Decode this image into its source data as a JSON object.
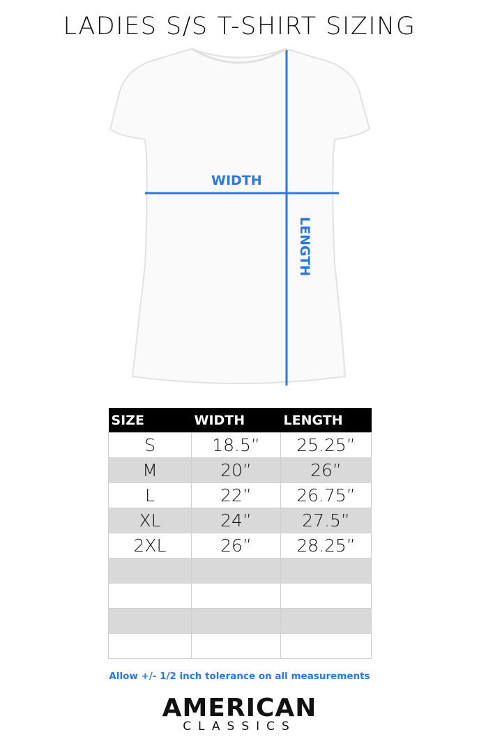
{
  "title": "LADIES S/S T-SHIRT SIZING",
  "diagram": {
    "width_label": "WIDTH",
    "length_label": "LENGTH",
    "accent_color": "#2a78e4"
  },
  "table": {
    "headers": [
      "SIZE",
      "WIDTH",
      "LENGTH"
    ],
    "rows": [
      [
        "S",
        "18.5”",
        "25.25”"
      ],
      [
        "M",
        "20”",
        "26”"
      ],
      [
        "L",
        "22”",
        "26.75”"
      ],
      [
        "XL",
        "24”",
        "27.5”"
      ],
      [
        "2XL",
        "26”",
        "28.25”"
      ],
      [
        "",
        "",
        ""
      ],
      [
        "",
        "",
        ""
      ],
      [
        "",
        "",
        ""
      ],
      [
        "",
        "",
        ""
      ]
    ]
  },
  "note": "Allow +/- 1/2 inch tolerance on all measurements",
  "brand": {
    "line1": "AMERICAN",
    "line2": "CLASSICS"
  }
}
